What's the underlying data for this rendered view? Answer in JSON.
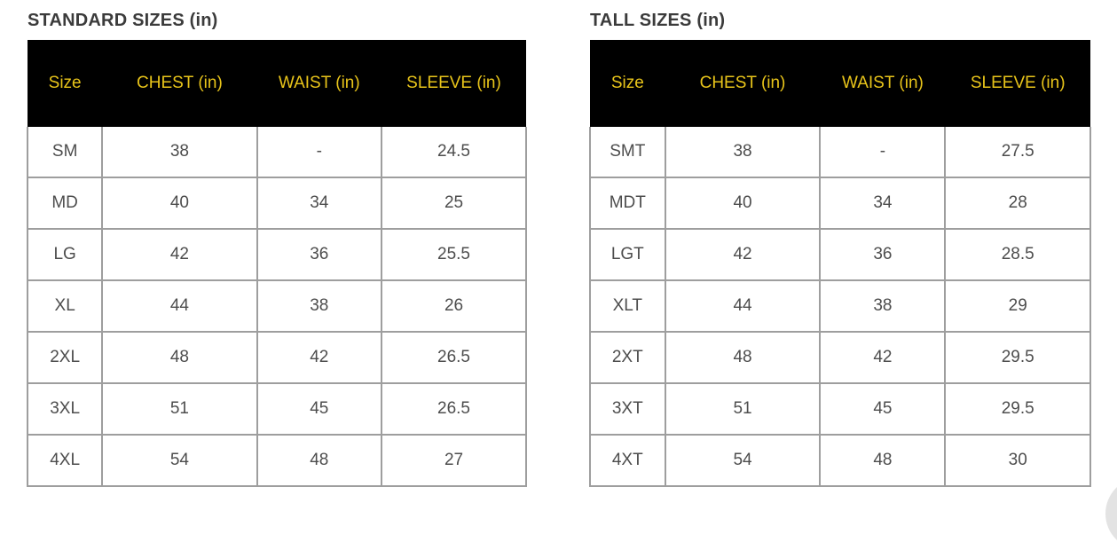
{
  "colors": {
    "header_bg": "#000000",
    "header_text": "#e8c41a",
    "title_text": "#3b3b3b",
    "cell_text": "#4d4d4d",
    "border": "#9e9e9e",
    "chat_widget": "#e3e3e3"
  },
  "standard_table": {
    "title": "STANDARD SIZES (in)",
    "headers": {
      "size": "Size",
      "chest": "CHEST (in)",
      "waist": "WAIST (in)",
      "sleeve": "SLEEVE (in)"
    },
    "rows": [
      {
        "size": "SM",
        "chest": "38",
        "waist": "-",
        "sleeve": "24.5"
      },
      {
        "size": "MD",
        "chest": "40",
        "waist": "34",
        "sleeve": "25"
      },
      {
        "size": "LG",
        "chest": "42",
        "waist": "36",
        "sleeve": "25.5"
      },
      {
        "size": "XL",
        "chest": "44",
        "waist": "38",
        "sleeve": "26"
      },
      {
        "size": "2XL",
        "chest": "48",
        "waist": "42",
        "sleeve": "26.5"
      },
      {
        "size": "3XL",
        "chest": "51",
        "waist": "45",
        "sleeve": "26.5"
      },
      {
        "size": "4XL",
        "chest": "54",
        "waist": "48",
        "sleeve": "27"
      }
    ]
  },
  "tall_table": {
    "title": "TALL SIZES (in)",
    "headers": {
      "size": "Size",
      "chest": "CHEST (in)",
      "waist": "WAIST (in)",
      "sleeve": "SLEEVE (in)"
    },
    "rows": [
      {
        "size": "SMT",
        "chest": "38",
        "waist": "-",
        "sleeve": "27.5"
      },
      {
        "size": "MDT",
        "chest": "40",
        "waist": "34",
        "sleeve": "28"
      },
      {
        "size": "LGT",
        "chest": "42",
        "waist": "36",
        "sleeve": "28.5"
      },
      {
        "size": "XLT",
        "chest": "44",
        "waist": "38",
        "sleeve": "29"
      },
      {
        "size": "2XT",
        "chest": "48",
        "waist": "42",
        "sleeve": "29.5"
      },
      {
        "size": "3XT",
        "chest": "51",
        "waist": "45",
        "sleeve": "29.5"
      },
      {
        "size": "4XT",
        "chest": "54",
        "waist": "48",
        "sleeve": "30"
      }
    ]
  },
  "chart_data": [
    {
      "type": "table",
      "title": "STANDARD SIZES (in)",
      "columns": [
        "Size",
        "CHEST (in)",
        "WAIST (in)",
        "SLEEVE (in)"
      ],
      "rows": [
        [
          "SM",
          "38",
          "-",
          "24.5"
        ],
        [
          "MD",
          "40",
          "34",
          "25"
        ],
        [
          "LG",
          "42",
          "36",
          "25.5"
        ],
        [
          "XL",
          "44",
          "38",
          "26"
        ],
        [
          "2XL",
          "48",
          "42",
          "26.5"
        ],
        [
          "3XL",
          "51",
          "45",
          "26.5"
        ],
        [
          "4XL",
          "54",
          "48",
          "27"
        ]
      ],
      "layout": {
        "header_bg": "#000000",
        "header_text_color": "#e8c41a",
        "position": "left"
      }
    },
    {
      "type": "table",
      "title": "TALL SIZES (in)",
      "columns": [
        "Size",
        "CHEST (in)",
        "WAIST (in)",
        "SLEEVE (in)"
      ],
      "rows": [
        [
          "SMT",
          "38",
          "-",
          "27.5"
        ],
        [
          "MDT",
          "40",
          "34",
          "28"
        ],
        [
          "LGT",
          "42",
          "36",
          "28.5"
        ],
        [
          "XLT",
          "44",
          "38",
          "29"
        ],
        [
          "2XT",
          "48",
          "42",
          "29.5"
        ],
        [
          "3XT",
          "51",
          "45",
          "29.5"
        ],
        [
          "4XT",
          "54",
          "48",
          "30"
        ]
      ],
      "layout": {
        "header_bg": "#000000",
        "header_text_color": "#e8c41a",
        "position": "right"
      }
    }
  ]
}
